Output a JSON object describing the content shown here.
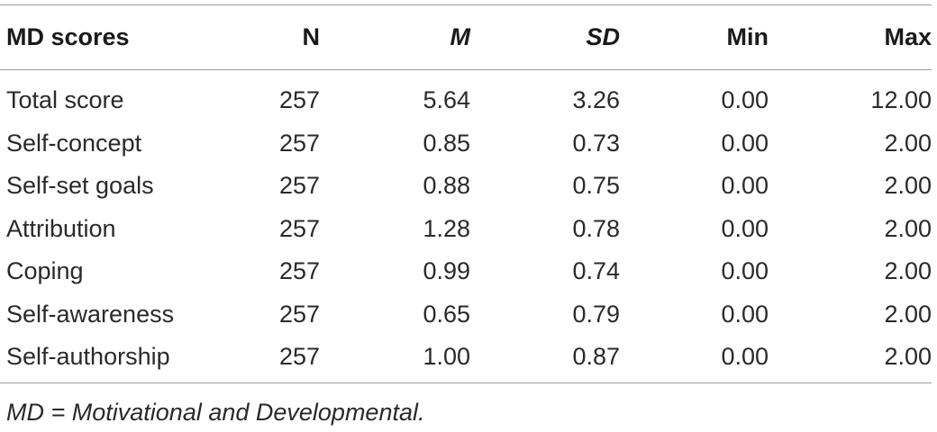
{
  "table": {
    "headers": [
      "MD scores",
      "N",
      "M",
      "SD",
      "Min",
      "Max"
    ],
    "rows": [
      [
        "Total score",
        "257",
        "5.64",
        "3.26",
        "0.00",
        "12.00"
      ],
      [
        "Self-concept",
        "257",
        "0.85",
        "0.73",
        "0.00",
        "2.00"
      ],
      [
        "Self-set goals",
        "257",
        "0.88",
        "0.75",
        "0.00",
        "2.00"
      ],
      [
        "Attribution",
        "257",
        "1.28",
        "0.78",
        "0.00",
        "2.00"
      ],
      [
        "Coping",
        "257",
        "0.99",
        "0.74",
        "0.00",
        "2.00"
      ],
      [
        "Self-awareness",
        "257",
        "0.65",
        "0.79",
        "0.00",
        "2.00"
      ],
      [
        "Self-authorship",
        "257",
        "1.00",
        "0.87",
        "0.00",
        "2.00"
      ]
    ],
    "note": "MD = Motivational and Developmental."
  }
}
